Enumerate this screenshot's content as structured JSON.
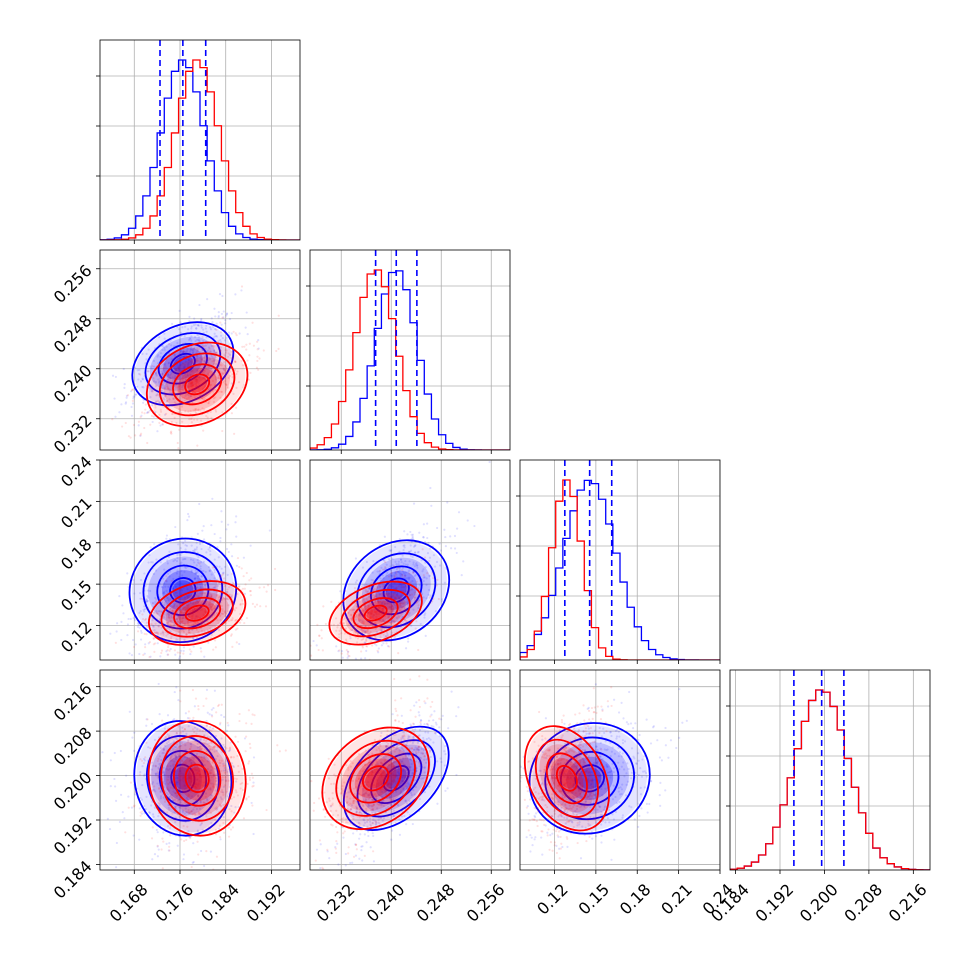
{
  "chart_data": {
    "type": "corner",
    "colors": {
      "series_a": "#0000ff",
      "series_b": "#ff0000",
      "quantile_line": "#0000ff",
      "grid": "#b0b0b0"
    },
    "grid": true,
    "parameters": [
      {
        "range": [
          0.162,
          0.197
        ],
        "ticks": [
          0.168,
          0.176,
          0.184,
          0.192
        ],
        "tick_labels": [
          "0.168",
          "0.176",
          "0.184",
          "0.192"
        ]
      },
      {
        "range": [
          0.227,
          0.259
        ],
        "ticks": [
          0.232,
          0.24,
          0.248,
          0.256
        ],
        "tick_labels": [
          "0.232",
          "0.240",
          "0.248",
          "0.256"
        ]
      },
      {
        "range": [
          0.095,
          0.24
        ],
        "ticks": [
          0.12,
          0.15,
          0.18,
          0.21,
          0.24
        ],
        "tick_labels": [
          "0.12",
          "0.15",
          "0.18",
          "0.21",
          "0.24"
        ]
      },
      {
        "range": [
          0.183,
          0.219
        ],
        "ticks": [
          0.184,
          0.192,
          0.2,
          0.208,
          0.216
        ],
        "tick_labels": [
          "0.184",
          "0.192",
          "0.200",
          "0.208",
          "0.216"
        ]
      }
    ],
    "series": [
      {
        "color": "#0000ff",
        "mean": [
          0.1765,
          0.2408,
          0.1455,
          0.1995
        ],
        "std": [
          0.0038,
          0.0033,
          0.019,
          0.0048
        ]
      },
      {
        "color": "#ff0000",
        "mean": [
          0.179,
          0.2375,
          0.129,
          0.1995
        ],
        "std": [
          0.0038,
          0.0033,
          0.011,
          0.0048
        ]
      }
    ],
    "correlations": {
      "series_a": [
        [
          0,
          1,
          0.55
        ],
        [
          0,
          2,
          0.45
        ],
        [
          0,
          3,
          0.15
        ],
        [
          1,
          2,
          0.6
        ],
        [
          1,
          3,
          0.75
        ],
        [
          2,
          3,
          0.35
        ]
      ],
      "series_b": [
        [
          0,
          1,
          0.5
        ],
        [
          0,
          2,
          0.45
        ],
        [
          0,
          3,
          0.15
        ],
        [
          1,
          2,
          0.55
        ],
        [
          1,
          3,
          0.65
        ],
        [
          2,
          3,
          0.3
        ]
      ]
    },
    "quantiles": [
      [
        0.1725,
        0.1765,
        0.1805
      ],
      [
        0.2375,
        0.2408,
        0.2441
      ],
      [
        0.1275,
        0.1455,
        0.1615
      ],
      [
        0.1945,
        0.1995,
        0.2035
      ]
    ]
  }
}
